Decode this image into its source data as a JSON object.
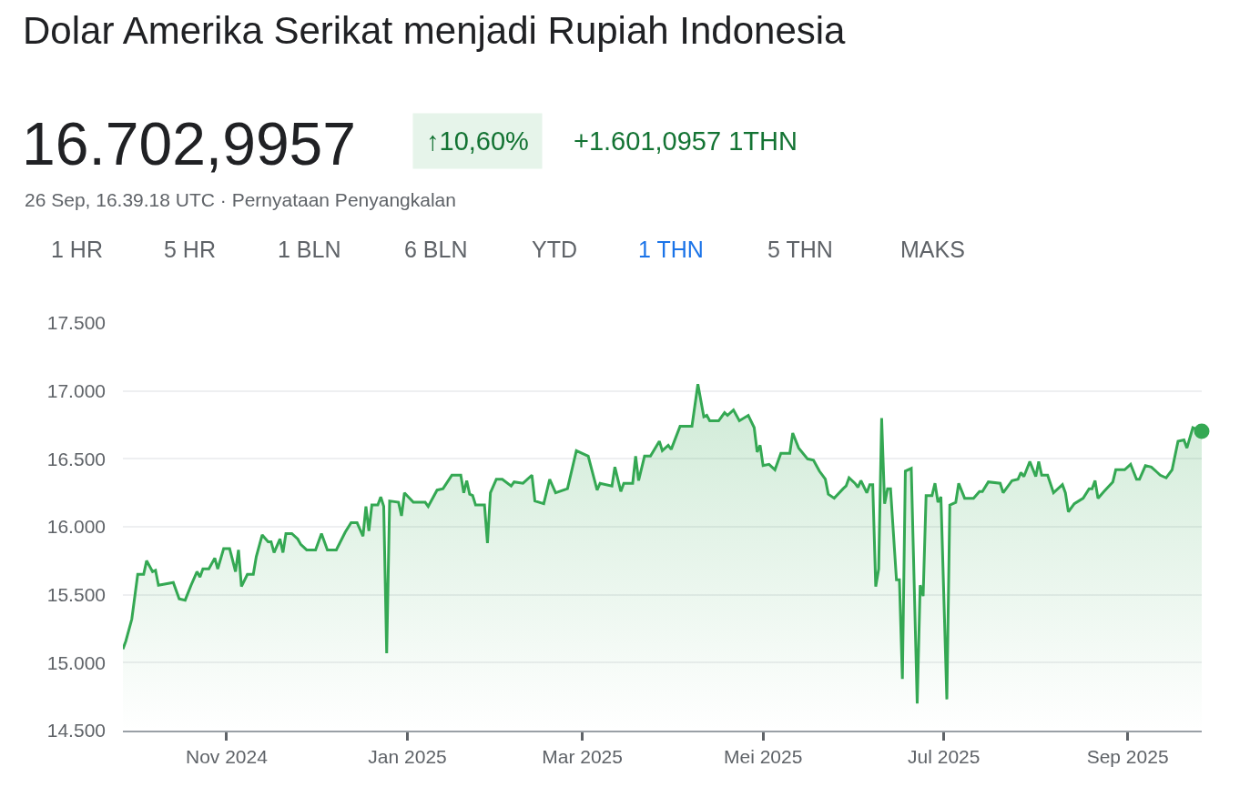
{
  "chart_data": {
    "type": "area",
    "title": "Dolar Amerika Serikat menjadi Rupiah Indonesia",
    "subtitle": "16.702,9957",
    "annotations": [
      "↑10,60%",
      "+1.601,0957 1THN",
      "26 Sep, 16.39.18 UTC · Pernyataan Penyangkalan",
      "1 HR",
      "5 HR",
      "1 BLN",
      "6 BLN",
      "YTD",
      "1 THN",
      "5 THN",
      "MAKS"
    ],
    "xlim": [
      "2024-09-27",
      "2025-09-26"
    ],
    "xticks": [
      {
        "value": "2024-11-01",
        "label": "Nov 2024"
      },
      {
        "value": "2025-01-01",
        "label": "Jan 2025"
      },
      {
        "value": "2025-03-01",
        "label": "Mar 2025"
      },
      {
        "value": "2025-05-01",
        "label": "Mei 2025"
      },
      {
        "value": "2025-07-01",
        "label": "Jul 2025"
      },
      {
        "value": "2025-09-01",
        "label": "Sep 2025"
      }
    ],
    "ylim": [
      14500,
      17500
    ],
    "yticks": [
      {
        "value": 14500,
        "label": "14.500"
      },
      {
        "value": 15000,
        "label": "15.000"
      },
      {
        "value": 15500,
        "label": "15.500"
      },
      {
        "value": 16000,
        "label": "16.000"
      },
      {
        "value": 16500,
        "label": "16.500"
      },
      {
        "value": 17000,
        "label": "17.000"
      },
      {
        "value": 17500,
        "label": "17.500"
      }
    ],
    "grid": "y",
    "series": [
      {
        "color": "#34a853",
        "x": [
          "2024-09-27",
          "2024-09-28",
          "2024-09-30",
          "2024-10-02",
          "2024-10-04",
          "2024-10-05",
          "2024-10-07",
          "2024-10-08",
          "2024-10-09",
          "2024-10-14",
          "2024-10-16",
          "2024-10-18",
          "2024-10-20",
          "2024-10-22",
          "2024-10-23",
          "2024-10-24",
          "2024-10-26",
          "2024-10-28",
          "2024-10-29",
          "2024-10-31",
          "2024-11-02",
          "2024-11-04",
          "2024-11-05",
          "2024-11-06",
          "2024-11-08",
          "2024-11-10",
          "2024-11-11",
          "2024-11-13",
          "2024-11-15",
          "2024-11-16",
          "2024-11-17",
          "2024-11-19",
          "2024-11-20",
          "2024-11-21",
          "2024-11-23",
          "2024-11-25",
          "2024-11-26",
          "2024-11-28",
          "2024-12-01",
          "2024-12-03",
          "2024-12-05",
          "2024-12-08",
          "2024-12-11",
          "2024-12-13",
          "2024-12-15",
          "2024-12-17",
          "2024-12-18",
          "2024-12-19",
          "2024-12-20",
          "2024-12-22",
          "2024-12-23",
          "2024-12-24",
          "2024-12-25",
          "2024-12-26",
          "2024-12-29",
          "2024-12-30",
          "2024-12-31",
          "2025-01-03",
          "2025-01-07",
          "2025-01-08",
          "2025-01-11",
          "2025-01-13",
          "2025-01-16",
          "2025-01-19",
          "2025-01-20",
          "2025-01-21",
          "2025-01-22",
          "2025-01-23",
          "2025-01-24",
          "2025-01-27",
          "2025-01-28",
          "2025-01-29",
          "2025-01-31",
          "2025-02-02",
          "2025-02-05",
          "2025-02-06",
          "2025-02-09",
          "2025-02-12",
          "2025-02-13",
          "2025-02-16",
          "2025-02-18",
          "2025-02-20",
          "2025-02-24",
          "2025-02-27",
          "2025-03-03",
          "2025-03-06",
          "2025-03-07",
          "2025-03-11",
          "2025-03-12",
          "2025-03-14",
          "2025-03-15",
          "2025-03-18",
          "2025-03-19",
          "2025-03-20",
          "2025-03-22",
          "2025-03-24",
          "2025-03-27",
          "2025-03-28",
          "2025-03-30",
          "2025-03-31",
          "2025-04-03",
          "2025-04-07",
          "2025-04-09",
          "2025-04-11",
          "2025-04-12",
          "2025-04-13",
          "2025-04-16",
          "2025-04-18",
          "2025-04-19",
          "2025-04-21",
          "2025-04-23",
          "2025-04-26",
          "2025-04-28",
          "2025-04-29",
          "2025-04-30",
          "2025-05-01",
          "2025-05-03",
          "2025-05-05",
          "2025-05-07",
          "2025-05-10",
          "2025-05-11",
          "2025-05-13",
          "2025-05-16",
          "2025-05-18",
          "2025-05-20",
          "2025-05-22",
          "2025-05-23",
          "2025-05-25",
          "2025-05-28",
          "2025-05-29",
          "2025-05-30",
          "2025-06-01",
          "2025-06-02",
          "2025-06-03",
          "2025-06-05",
          "2025-06-06",
          "2025-06-07",
          "2025-06-08",
          "2025-06-09",
          "2025-06-10",
          "2025-06-11",
          "2025-06-12",
          "2025-06-13",
          "2025-06-15",
          "2025-06-16",
          "2025-06-17",
          "2025-06-18",
          "2025-06-20",
          "2025-06-22",
          "2025-06-23",
          "2025-06-24",
          "2025-06-25",
          "2025-06-27",
          "2025-06-28",
          "2025-06-29",
          "2025-06-30",
          "2025-07-02",
          "2025-07-03",
          "2025-07-05",
          "2025-07-06",
          "2025-07-08",
          "2025-07-11",
          "2025-07-13",
          "2025-07-14",
          "2025-07-16",
          "2025-07-20",
          "2025-07-21",
          "2025-07-24",
          "2025-07-26",
          "2025-07-27",
          "2025-07-28",
          "2025-07-30",
          "2025-08-01",
          "2025-08-02",
          "2025-08-03",
          "2025-08-05",
          "2025-08-07",
          "2025-08-10",
          "2025-08-11",
          "2025-08-12",
          "2025-08-14",
          "2025-08-17",
          "2025-08-19",
          "2025-08-20",
          "2025-08-21",
          "2025-08-22",
          "2025-08-24",
          "2025-08-27",
          "2025-08-28",
          "2025-08-31",
          "2025-09-02",
          "2025-09-04",
          "2025-09-05",
          "2025-09-07",
          "2025-09-09",
          "2025-09-11",
          "2025-09-12",
          "2025-09-14",
          "2025-09-16",
          "2025-09-18",
          "2025-09-20",
          "2025-09-21",
          "2025-09-23",
          "2025-09-26"
        ],
        "values": [
          15100,
          15160,
          15320,
          15650,
          15650,
          15750,
          15670,
          15680,
          15570,
          15590,
          15470,
          15460,
          15570,
          15670,
          15630,
          15690,
          15690,
          15770,
          15690,
          15840,
          15840,
          15670,
          15830,
          15560,
          15650,
          15650,
          15780,
          15940,
          15890,
          15890,
          15810,
          15910,
          15810,
          15950,
          15950,
          15910,
          15870,
          15830,
          15830,
          15950,
          15830,
          15830,
          15960,
          16030,
          16030,
          15930,
          16150,
          15970,
          16160,
          16160,
          16220,
          16150,
          15070,
          16190,
          16180,
          16080,
          16250,
          16180,
          16180,
          16150,
          16270,
          16280,
          16380,
          16380,
          16250,
          16340,
          16240,
          16230,
          16160,
          16160,
          15880,
          16250,
          16350,
          16350,
          16300,
          16330,
          16320,
          16380,
          16190,
          16170,
          16350,
          16250,
          16280,
          16560,
          16520,
          16270,
          16320,
          16300,
          16440,
          16260,
          16320,
          16320,
          16520,
          16340,
          16520,
          16520,
          16630,
          16560,
          16600,
          16570,
          16740,
          16740,
          17050,
          16810,
          16820,
          16780,
          16780,
          16840,
          16820,
          16860,
          16780,
          16820,
          16730,
          16550,
          16600,
          16450,
          16460,
          16420,
          16540,
          16540,
          16690,
          16580,
          16500,
          16490,
          16410,
          16350,
          16240,
          16210,
          16280,
          16300,
          16360,
          16320,
          16290,
          16340,
          16250,
          16310,
          16310,
          15560,
          15690,
          16800,
          16170,
          16280,
          16280,
          15610,
          15610,
          14880,
          16410,
          16430,
          14700,
          15570,
          15490,
          16230,
          16230,
          16320,
          16180,
          16220,
          14730,
          16160,
          16180,
          16320,
          16210,
          16210,
          16260,
          16260,
          16330,
          16320,
          16250,
          16340,
          16350,
          16400,
          16370,
          16480,
          16370,
          16480,
          16380,
          16380,
          16250,
          16310,
          16250,
          16110,
          16170,
          16210,
          16280,
          16280,
          16340,
          16210,
          16260,
          16330,
          16420,
          16420,
          16460,
          16350,
          16350,
          16450,
          16440,
          16400,
          16380,
          16360,
          16420,
          16630,
          16640,
          16580,
          16730,
          16703
        ]
      },
      {
        "type": "scatter",
        "marker": "circle",
        "color": "#34a853",
        "x": [
          "2025-09-26"
        ],
        "values": [
          16703
        ]
      }
    ]
  }
}
